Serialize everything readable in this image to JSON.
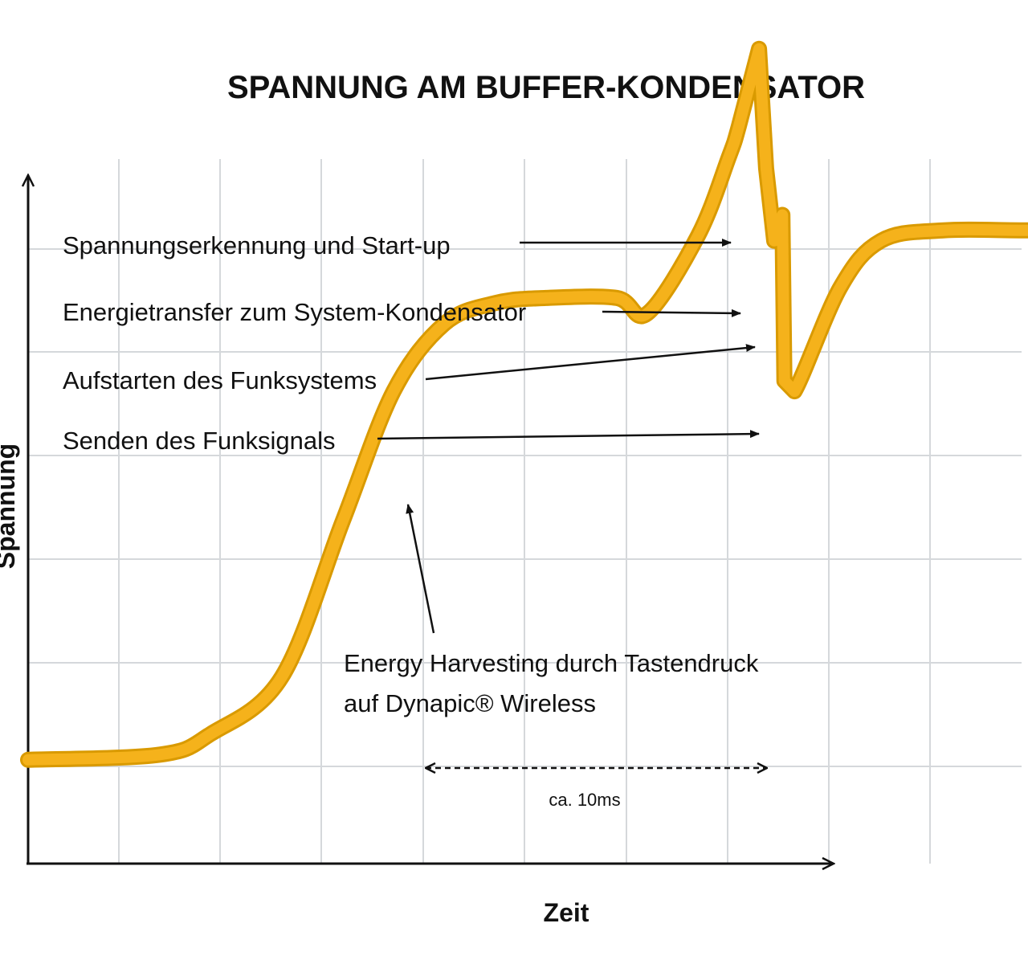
{
  "chart_data": {
    "type": "line",
    "title": "SPANNUNG AM BUFFER-KONDENSATOR",
    "xlabel": "Zeit",
    "ylabel": "Spannung",
    "grid": true,
    "series_color": "#f5b21b",
    "series_edge_color": "#d99a00",
    "x": [
      0,
      1.3,
      1.8,
      2.5,
      3.1,
      3.6,
      4.1,
      4.6,
      5.1,
      5.8,
      6.1,
      6.6,
      6.9,
      7.0,
      7.2,
      7.27,
      7.35,
      7.43,
      7.45,
      7.55,
      8.0,
      8.4,
      9.0,
      10.0,
      11.7
    ],
    "y": [
      1.0,
      1.05,
      1.25,
      1.8,
      3.3,
      4.55,
      5.2,
      5.4,
      5.45,
      5.45,
      5.3,
      6.05,
      6.8,
      7.1,
      7.85,
      6.7,
      6.0,
      6.25,
      4.65,
      4.55,
      5.55,
      6.0,
      6.1,
      6.1,
      6.1
    ],
    "annotations": [
      {
        "id": "startup",
        "text": "Spannungserkennung und Start-up"
      },
      {
        "id": "transfer",
        "text": "Energietransfer zum System-Kondensator"
      },
      {
        "id": "funksystem",
        "text": "Aufstarten des Funksystems"
      },
      {
        "id": "senden",
        "text": "Senden des Funksignals"
      },
      {
        "id": "harvest1",
        "text": "Energy Harvesting durch Tastendruck"
      },
      {
        "id": "harvest2",
        "text": "auf Dynapic® Wireless"
      }
    ],
    "duration_label": "ca. 10ms"
  }
}
